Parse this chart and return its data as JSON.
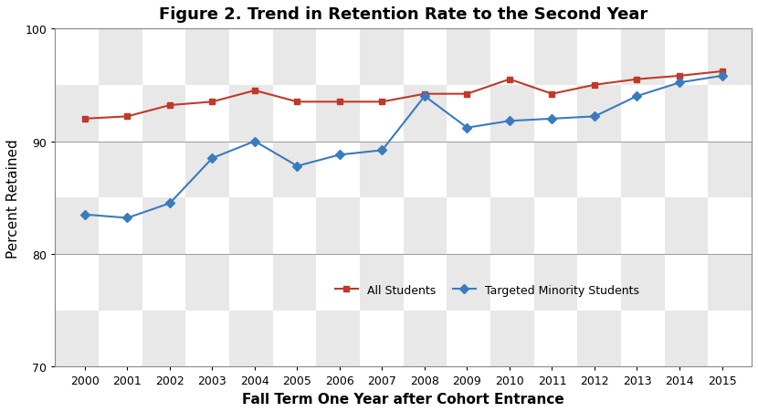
{
  "title": "Figure 2. Trend in Retention Rate to the Second Year",
  "xlabel": "Fall Term One Year after Cohort Entrance",
  "ylabel": "Percent Retained",
  "years": [
    2000,
    2001,
    2002,
    2003,
    2004,
    2005,
    2006,
    2007,
    2008,
    2009,
    2010,
    2011,
    2012,
    2013,
    2014,
    2015
  ],
  "all_students": [
    92.0,
    92.2,
    93.2,
    93.5,
    94.5,
    93.5,
    93.5,
    93.5,
    94.2,
    94.2,
    95.5,
    94.2,
    95.0,
    95.5,
    95.8,
    96.2
  ],
  "minority_students": [
    83.5,
    83.2,
    84.5,
    88.5,
    90.0,
    87.8,
    88.8,
    89.2,
    94.0,
    91.2,
    91.8,
    92.0,
    92.2,
    94.0,
    95.2,
    95.8
  ],
  "all_students_color": "#c0392b",
  "minority_students_color": "#3a7bbf",
  "ylim": [
    70,
    100
  ],
  "major_yticks": [
    70,
    80,
    90,
    100
  ],
  "checker_light": "#e8e8e8",
  "checker_white": "#ffffff",
  "grid_line_color": "#999999",
  "legend_all": "All Students",
  "legend_minority": "Targeted Minority Students",
  "title_fontsize": 13,
  "label_fontsize": 11,
  "tick_fontsize": 9,
  "figsize": [
    8.3,
    4.52
  ],
  "dpi": 100
}
